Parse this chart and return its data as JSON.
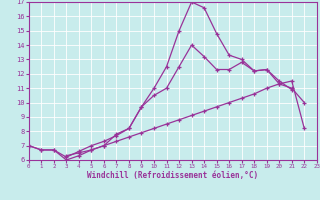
{
  "xlabel": "Windchill (Refroidissement éolien,°C)",
  "bg_color": "#c8ecec",
  "grid_color": "#ffffff",
  "line_color": "#993399",
  "xmin": 0,
  "xmax": 23,
  "ymin": 6,
  "ymax": 17,
  "line1_x": [
    0,
    1,
    2,
    3,
    4,
    5,
    6,
    7,
    8,
    9,
    10,
    11,
    12,
    13,
    14,
    15,
    16,
    17,
    18,
    19,
    20,
    21,
    22,
    23
  ],
  "line1_y": [
    7.0,
    6.7,
    6.7,
    6.0,
    6.3,
    6.7,
    7.0,
    7.8,
    8.2,
    9.7,
    11.0,
    12.5,
    15.0,
    17.0,
    16.6,
    14.8,
    13.3,
    13.0,
    12.2,
    12.3,
    11.3,
    11.0,
    10.0,
    null
  ],
  "line2_x": [
    0,
    1,
    2,
    3,
    4,
    5,
    6,
    7,
    8,
    9,
    10,
    11,
    12,
    13,
    14,
    15,
    16,
    17,
    18,
    19,
    20,
    21,
    22,
    23
  ],
  "line2_y": [
    7.0,
    6.7,
    6.7,
    6.2,
    6.6,
    7.0,
    7.3,
    7.7,
    8.2,
    9.7,
    10.5,
    11.0,
    12.5,
    14.0,
    13.2,
    12.3,
    12.3,
    12.8,
    12.2,
    12.3,
    11.5,
    10.9,
    null,
    null
  ],
  "line3_x": [
    0,
    1,
    2,
    3,
    4,
    5,
    6,
    7,
    8,
    9,
    10,
    11,
    12,
    13,
    14,
    15,
    16,
    17,
    18,
    19,
    20,
    21,
    22,
    23
  ],
  "line3_y": [
    7.0,
    null,
    null,
    6.3,
    6.5,
    6.7,
    7.0,
    7.3,
    7.6,
    7.9,
    8.2,
    8.5,
    8.8,
    9.1,
    9.4,
    9.7,
    10.0,
    10.3,
    10.6,
    11.0,
    11.3,
    11.5,
    8.2,
    null
  ],
  "yticks": [
    6,
    7,
    8,
    9,
    10,
    11,
    12,
    13,
    14,
    15,
    16,
    17
  ],
  "xticks": [
    0,
    1,
    2,
    3,
    4,
    5,
    6,
    7,
    8,
    9,
    10,
    11,
    12,
    13,
    14,
    15,
    16,
    17,
    18,
    19,
    20,
    21,
    22,
    23
  ]
}
